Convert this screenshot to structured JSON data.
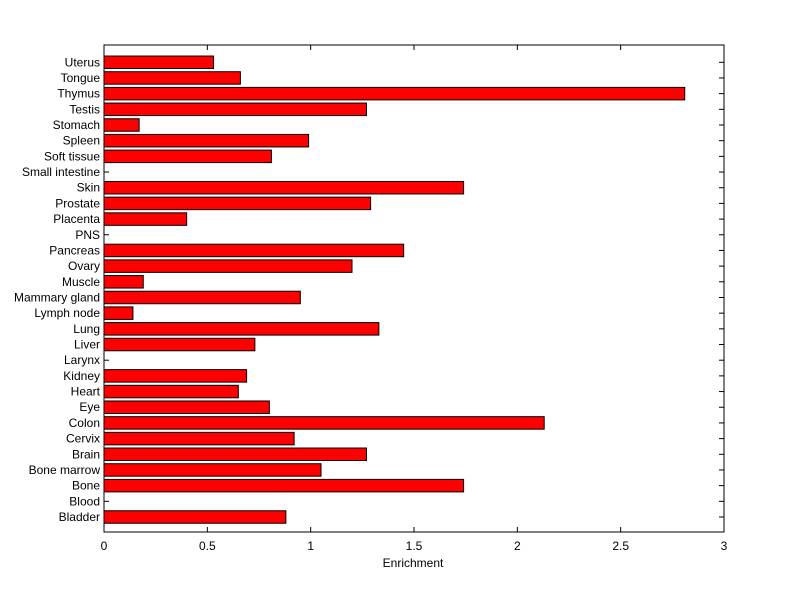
{
  "chart_data": {
    "type": "bar",
    "orientation": "horizontal",
    "categories": [
      "Bladder",
      "Blood",
      "Bone",
      "Bone marrow",
      "Brain",
      "Cervix",
      "Colon",
      "Eye",
      "Heart",
      "Kidney",
      "Larynx",
      "Liver",
      "Lung",
      "Lymph node",
      "Mammary gland",
      "Muscle",
      "Ovary",
      "Pancreas",
      "PNS",
      "Placenta",
      "Prostate",
      "Skin",
      "Small intestine",
      "Soft tissue",
      "Spleen",
      "Stomach",
      "Testis",
      "Thymus",
      "Tongue",
      "Uterus"
    ],
    "values": [
      0.88,
      0,
      1.74,
      1.05,
      1.27,
      0.92,
      2.13,
      0.8,
      0.65,
      0.69,
      0,
      0.73,
      1.33,
      0.14,
      0.95,
      0.19,
      1.2,
      1.45,
      0,
      0.4,
      1.29,
      1.74,
      0,
      0.81,
      0.99,
      0.17,
      1.27,
      2.81,
      0.66,
      0.53
    ],
    "title": "",
    "xlabel": "Enrichment",
    "ylabel": "",
    "xlim": [
      0,
      3
    ],
    "xticks": [
      "0",
      "0.5",
      "1",
      "1.5",
      "2",
      "2.5",
      "3"
    ],
    "xtick_values": [
      0,
      0.5,
      1,
      1.5,
      2,
      2.5,
      3
    ],
    "grid": false,
    "bar_color": "#ff0000",
    "bar_edge_color": "#000000"
  }
}
